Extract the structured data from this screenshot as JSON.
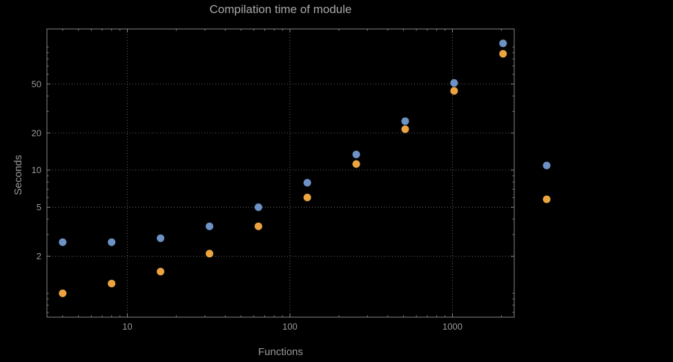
{
  "chart_data": {
    "type": "scatter",
    "title": "Compilation time of module",
    "xlabel": "Functions",
    "ylabel": "Seconds",
    "x_scale": "log",
    "y_scale": "log",
    "x": [
      4,
      8,
      16,
      32,
      64,
      128,
      256,
      512,
      1024,
      2048
    ],
    "series": [
      {
        "name": "blue",
        "color": "#6d92c5",
        "values": [
          2.6,
          2.6,
          2.8,
          3.5,
          5.0,
          7.9,
          13.4,
          25,
          51,
          107
        ]
      },
      {
        "name": "orange",
        "color": "#eba43f",
        "values": [
          1.0,
          1.2,
          1.5,
          2.1,
          3.5,
          6.0,
          11.2,
          21.5,
          44,
          88
        ]
      }
    ],
    "x_ticks": [
      10,
      100,
      1000
    ],
    "y_ticks": [
      2,
      5,
      10,
      20,
      50
    ],
    "xlim": [
      3.2,
      2400
    ],
    "ylim": [
      0.64,
      140
    ],
    "grid": "dotted",
    "legend": {
      "position": "right-outside",
      "labels_visible": false,
      "entries": [
        {
          "series": "blue"
        },
        {
          "series": "orange"
        }
      ]
    }
  },
  "colors": {
    "background": "#000000",
    "frame": "#8a8a8a",
    "grid": "#6b6b6b",
    "tick_text": "#9b9b9b",
    "title_text": "#a9a9a9",
    "blue": "#6d92c5",
    "orange": "#eba43f"
  }
}
